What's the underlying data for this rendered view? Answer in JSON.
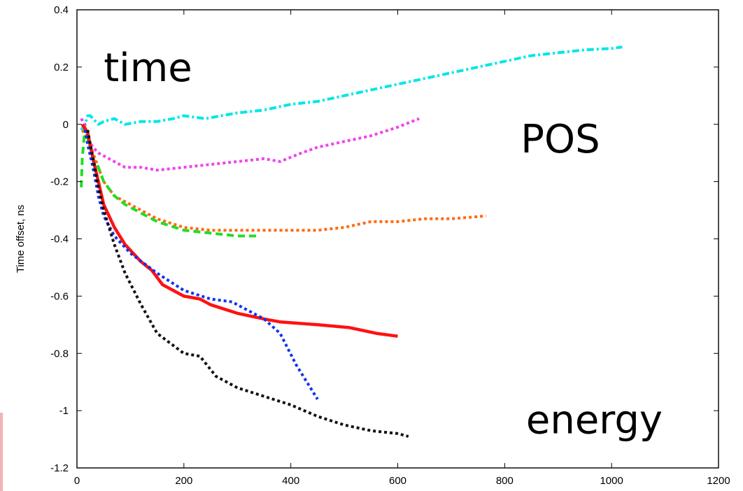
{
  "chart_data": {
    "type": "line",
    "title": "",
    "xlabel": "",
    "ylabel": "Time offset, ns",
    "xlim": [
      0,
      1200
    ],
    "ylim": [
      -1.2,
      0.4
    ],
    "xticks": [
      0,
      200,
      400,
      600,
      800,
      1000,
      1200
    ],
    "yticks": [
      -1.2,
      -1,
      -0.8,
      -0.6,
      -0.4,
      -0.2,
      0,
      0.2,
      0.4
    ],
    "grid": false,
    "legend": "none",
    "annotations": [
      {
        "text": "time",
        "x": 50,
        "y": 0.2
      },
      {
        "text": "POS",
        "x": 830,
        "y": -0.05
      },
      {
        "text": "energy",
        "x": 840,
        "y": -1.03
      }
    ],
    "series": [
      {
        "color": "#00e6e6",
        "style": "dashdot",
        "x": [
          8,
          15,
          20,
          25,
          30,
          40,
          50,
          70,
          90,
          120,
          150,
          180,
          200,
          240,
          300,
          350,
          400,
          450,
          500,
          550,
          600,
          650,
          700,
          750,
          800,
          850,
          900,
          950,
          1000,
          1020
        ],
        "y": [
          -0.02,
          0.0,
          0.03,
          0.03,
          0.02,
          0.0,
          0.01,
          0.02,
          0.0,
          0.01,
          0.01,
          0.02,
          0.03,
          0.02,
          0.04,
          0.05,
          0.07,
          0.08,
          0.1,
          0.12,
          0.14,
          0.16,
          0.18,
          0.2,
          0.22,
          0.24,
          0.25,
          0.26,
          0.265,
          0.27
        ]
      },
      {
        "color": "#ee44ee",
        "style": "dotted",
        "x": [
          8,
          15,
          20,
          30,
          40,
          60,
          90,
          120,
          150,
          200,
          250,
          300,
          350,
          380,
          420,
          450,
          500,
          550,
          600,
          640
        ],
        "y": [
          0.02,
          0.0,
          -0.05,
          -0.08,
          -0.1,
          -0.12,
          -0.15,
          -0.15,
          -0.16,
          -0.15,
          -0.14,
          -0.13,
          -0.12,
          -0.13,
          -0.1,
          -0.08,
          -0.06,
          -0.04,
          -0.01,
          0.02
        ]
      },
      {
        "color": "#ff6a10",
        "style": "dotted",
        "x": [
          10,
          20,
          30,
          40,
          50,
          70,
          90,
          120,
          150,
          200,
          250,
          300,
          350,
          400,
          450,
          500,
          550,
          600,
          650,
          700,
          765
        ],
        "y": [
          -0.02,
          -0.05,
          -0.1,
          -0.15,
          -0.2,
          -0.25,
          -0.27,
          -0.3,
          -0.33,
          -0.36,
          -0.37,
          -0.37,
          -0.37,
          -0.37,
          -0.37,
          -0.36,
          -0.34,
          -0.34,
          -0.33,
          -0.33,
          -0.32
        ]
      },
      {
        "color": "#22dd22",
        "style": "dashed",
        "x": [
          8,
          10,
          15,
          20,
          25,
          30,
          40,
          50,
          70,
          90,
          120,
          150,
          200,
          250,
          300,
          340
        ],
        "y": [
          -0.22,
          -0.12,
          -0.01,
          -0.05,
          -0.08,
          -0.12,
          -0.15,
          -0.2,
          -0.25,
          -0.28,
          -0.31,
          -0.34,
          -0.37,
          -0.38,
          -0.39,
          -0.39
        ]
      },
      {
        "color": "#ff1111",
        "style": "solid",
        "x": [
          10,
          20,
          30,
          40,
          50,
          70,
          90,
          120,
          140,
          160,
          200,
          230,
          250,
          300,
          350,
          380,
          450,
          510,
          560,
          600
        ],
        "y": [
          0.0,
          -0.03,
          -0.12,
          -0.2,
          -0.28,
          -0.36,
          -0.42,
          -0.48,
          -0.51,
          -0.56,
          -0.6,
          -0.61,
          -0.63,
          -0.66,
          -0.68,
          -0.69,
          -0.7,
          -0.71,
          -0.73,
          -0.74
        ]
      },
      {
        "color": "#1133ee",
        "style": "dotted",
        "x": [
          15,
          20,
          30,
          40,
          50,
          70,
          100,
          150,
          200,
          250,
          290,
          320,
          350,
          380,
          410,
          450
        ],
        "y": [
          -0.02,
          -0.07,
          -0.15,
          -0.25,
          -0.32,
          -0.39,
          -0.45,
          -0.52,
          -0.58,
          -0.61,
          -0.62,
          -0.65,
          -0.68,
          -0.73,
          -0.84,
          -0.96
        ]
      },
      {
        "color": "#111111",
        "style": "dotted",
        "x": [
          20,
          30,
          40,
          50,
          70,
          90,
          120,
          150,
          200,
          230,
          260,
          300,
          350,
          400,
          450,
          500,
          550,
          600,
          620
        ],
        "y": [
          -0.02,
          -0.12,
          -0.22,
          -0.3,
          -0.42,
          -0.52,
          -0.63,
          -0.73,
          -0.8,
          -0.81,
          -0.88,
          -0.92,
          -0.95,
          -0.98,
          -1.02,
          -1.05,
          -1.07,
          -1.08,
          -1.09
        ]
      }
    ]
  }
}
